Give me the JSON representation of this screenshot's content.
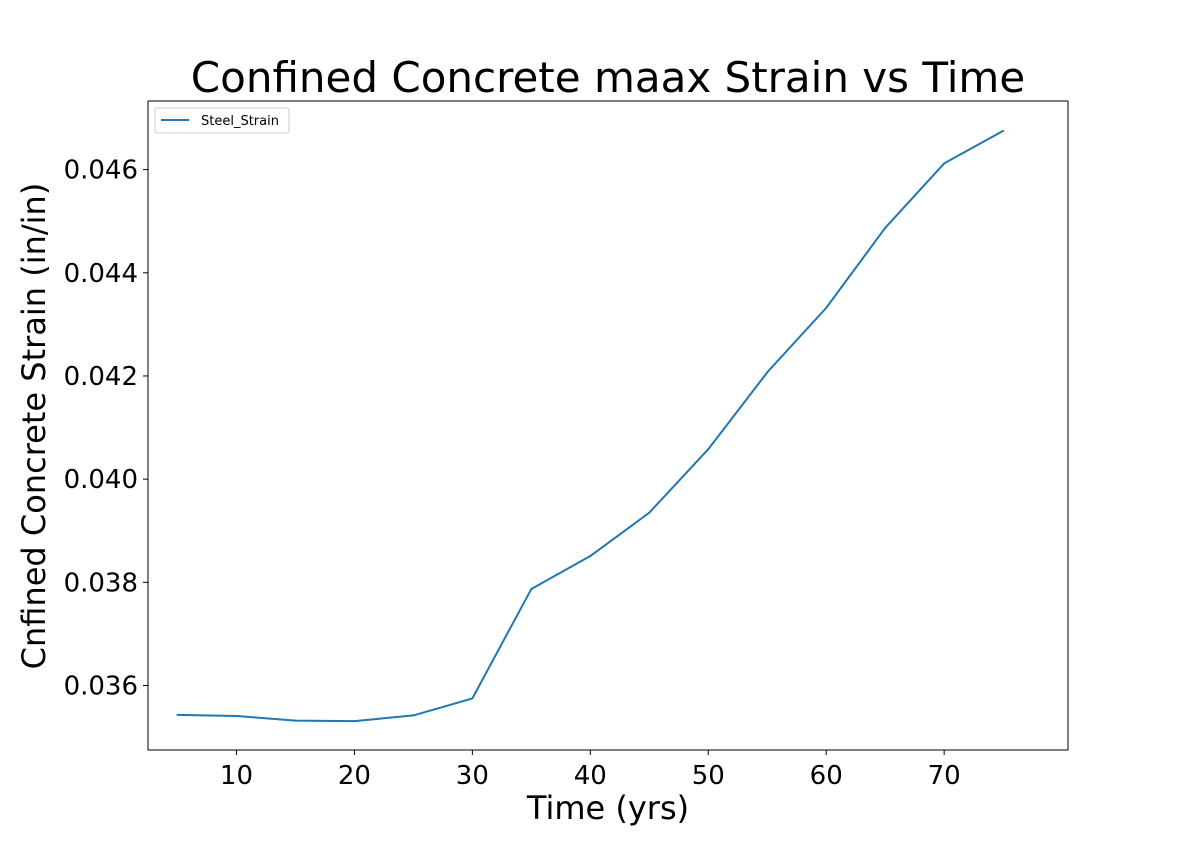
{
  "chart_data": {
    "type": "line",
    "title": "Confined Concrete maax Strain vs Time",
    "xlabel": "Time (yrs)",
    "ylabel": "Cnfined Concrete Strain (in/in)",
    "x": [
      5,
      10,
      15,
      20,
      25,
      30,
      35,
      40,
      45,
      50,
      55,
      60,
      65,
      70,
      75
    ],
    "series": [
      {
        "name": "Steel_Strain",
        "color": "#1f77b4",
        "values": [
          0.03543,
          0.03541,
          0.03532,
          0.03531,
          0.03542,
          0.03575,
          0.03787,
          0.03851,
          0.03935,
          0.04058,
          0.04207,
          0.04332,
          0.04487,
          0.04612,
          0.04675
        ]
      }
    ],
    "xlim": [
      2.5,
      80.5
    ],
    "ylim": [
      0.03475,
      0.04733
    ],
    "xticks": [
      10,
      20,
      30,
      40,
      50,
      60,
      70
    ],
    "xtick_labels": [
      "10",
      "20",
      "30",
      "40",
      "50",
      "60",
      "70"
    ],
    "yticks": [
      0.036,
      0.038,
      0.04,
      0.042,
      0.044,
      0.046
    ],
    "ytick_labels": [
      "0.036",
      "0.038",
      "0.040",
      "0.042",
      "0.044",
      "0.046"
    ],
    "legend_position": "top-left",
    "grid": false
  }
}
